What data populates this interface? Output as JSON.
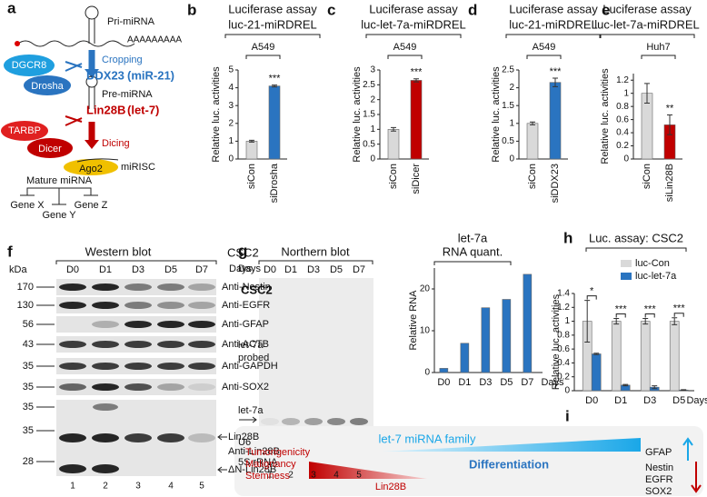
{
  "panel_labels": [
    "a",
    "b",
    "c",
    "d",
    "e",
    "f",
    "g",
    "h",
    "i"
  ],
  "diagram": {
    "pri_mirna": "Pri-miRNA",
    "poly_a": "AAAAAAAAA",
    "dgcr8": "DGCR8",
    "drosha": "Drosha",
    "cropping": "Cropping",
    "ddx23": "DDX23",
    "ddx23_target": "(miR-21)",
    "pre_mirna": "Pre-miRNA",
    "tarbp": "TARBP",
    "dicer": "Dicer",
    "lin28b": "Lin28B",
    "lin28b_target": "(let-7)",
    "dicing": "Dicing",
    "ago2": "Ago2",
    "mirisc": "miRISC",
    "mature_mirna": "Mature miRNA",
    "genes": [
      "Gene X",
      "Gene Y",
      "Gene Z"
    ]
  },
  "chart_data": [
    {
      "type": "bar",
      "title": "Luciferase assay",
      "subtitle": "luc-21-miRDREL",
      "cell_line": "A549",
      "y_label": "Relative luc. activities",
      "categories": [
        "siCon",
        "siDrosha"
      ],
      "values": [
        1,
        4.1
      ],
      "errors": [
        0.05,
        0.05
      ],
      "colors": [
        "#d9d9d9",
        "#2a74c0"
      ],
      "ylim": [
        0,
        5
      ],
      "yticks": [
        0,
        1,
        2,
        3,
        4,
        5
      ],
      "significance": "***"
    },
    {
      "type": "bar",
      "title": "Luciferase assay",
      "subtitle": "luc-let-7a-miRDREL",
      "cell_line": "A549",
      "y_label": "Relative luc. activities",
      "categories": [
        "siCon",
        "siDicer"
      ],
      "values": [
        1,
        2.65
      ],
      "errors": [
        0.06,
        0.05
      ],
      "colors": [
        "#d9d9d9",
        "#c00000"
      ],
      "ylim": [
        0,
        3
      ],
      "yticks": [
        0,
        0.5,
        1,
        1.5,
        2,
        2.5,
        3
      ],
      "significance": "***"
    },
    {
      "type": "bar",
      "title": "Luciferase assay",
      "subtitle": "luc-21-miRDREL",
      "cell_line": "A549",
      "y_label": "Relative luc. activities",
      "categories": [
        "siCon",
        "siDDX23"
      ],
      "values": [
        1,
        2.15
      ],
      "errors": [
        0.04,
        0.12
      ],
      "colors": [
        "#d9d9d9",
        "#2a74c0"
      ],
      "ylim": [
        0,
        2.5
      ],
      "yticks": [
        0,
        0.5,
        1,
        1.5,
        2,
        2.5
      ],
      "significance": "***"
    },
    {
      "type": "bar",
      "title": "Luciferase assay",
      "subtitle": "luc-let-7a-miRDREL",
      "cell_line": "Huh7",
      "y_label": "Relative luc. activities",
      "categories": [
        "siCon",
        "siLin28B"
      ],
      "values": [
        1,
        0.52
      ],
      "errors": [
        0.15,
        0.15
      ],
      "colors": [
        "#d9d9d9",
        "#c00000"
      ],
      "ylim": [
        0,
        1.3
      ],
      "yticks": [
        0,
        0.2,
        0.4,
        0.6,
        0.8,
        1,
        1.2
      ],
      "significance": "**"
    },
    {
      "type": "bar",
      "title": "let-7a",
      "subtitle": "RNA quant.",
      "y_label": "Relative RNA",
      "x_label": "Days",
      "categories": [
        "D0",
        "D1",
        "D3",
        "D5",
        "D7"
      ],
      "values": [
        1,
        7,
        15.5,
        17.5,
        23.5
      ],
      "color": "#2a74c0",
      "ylim": [
        0,
        25
      ],
      "yticks": [
        0,
        10,
        20
      ]
    },
    {
      "type": "bar",
      "title": "Luc. assay: CSC2",
      "y_label": "Relative luc. activities",
      "x_label": "Days",
      "categories": [
        "D0",
        "D1",
        "D3",
        "D5"
      ],
      "series": [
        {
          "name": "luc-Con",
          "color": "#d9d9d9",
          "values": [
            1,
            1,
            1,
            1
          ],
          "errors": [
            0.3,
            0.04,
            0.04,
            0.05
          ]
        },
        {
          "name": "luc-let-7a",
          "color": "#2a74c0",
          "values": [
            0.53,
            0.08,
            0.05,
            0.01
          ],
          "errors": [
            0.01,
            0.01,
            0.02,
            0.005
          ]
        }
      ],
      "ylim": [
        0,
        1.4
      ],
      "yticks": [
        0,
        0.2,
        0.4,
        0.6,
        0.8,
        1,
        1.2,
        1.4
      ],
      "significance": [
        "*",
        "***",
        "***",
        "***"
      ]
    }
  ],
  "western_blot": {
    "title": "Western blot",
    "cell_line": "CSC2",
    "days_label": "Days",
    "unit": "kDa",
    "lanes": [
      "D0",
      "D1",
      "D3",
      "D5",
      "D7"
    ],
    "markers": [
      170,
      130,
      56,
      43,
      35,
      35,
      35,
      35,
      28
    ],
    "antibodies": [
      "Anti-Nestin",
      "Anti-EGFR",
      "Anti-GFAP",
      "Anti-ACTB",
      "Anti-GAPDH",
      "Anti-SOX2"
    ],
    "lin28b_band": "Lin28B",
    "lin28b_antibody": "Anti-Lin28B",
    "dn_lin28b_band": "ΔN-Lin28B",
    "lane_numbers": [
      1,
      2,
      3,
      4,
      5
    ]
  },
  "northern_blot": {
    "title": "Northern blot",
    "days_label": "Days",
    "cell_line": "CSC2",
    "lanes": [
      "D0",
      "D1",
      "D3",
      "D5",
      "D7"
    ],
    "probe_lines": [
      "let-7a",
      "probed"
    ],
    "band": "let-7a",
    "u6": "U6",
    "rrna": "5S rRNA",
    "lane_numbers": [
      1,
      2,
      3,
      4,
      5
    ]
  },
  "summary": {
    "family": "let-7 miRNA family",
    "gfap": "GFAP",
    "phenotypes": [
      "Tumorigenicity",
      "Malignancy",
      "Stemness"
    ],
    "process": "Differentiation",
    "lin28b": "Lin28B",
    "markers": [
      "Nestin",
      "EGFR",
      "SOX2"
    ]
  }
}
